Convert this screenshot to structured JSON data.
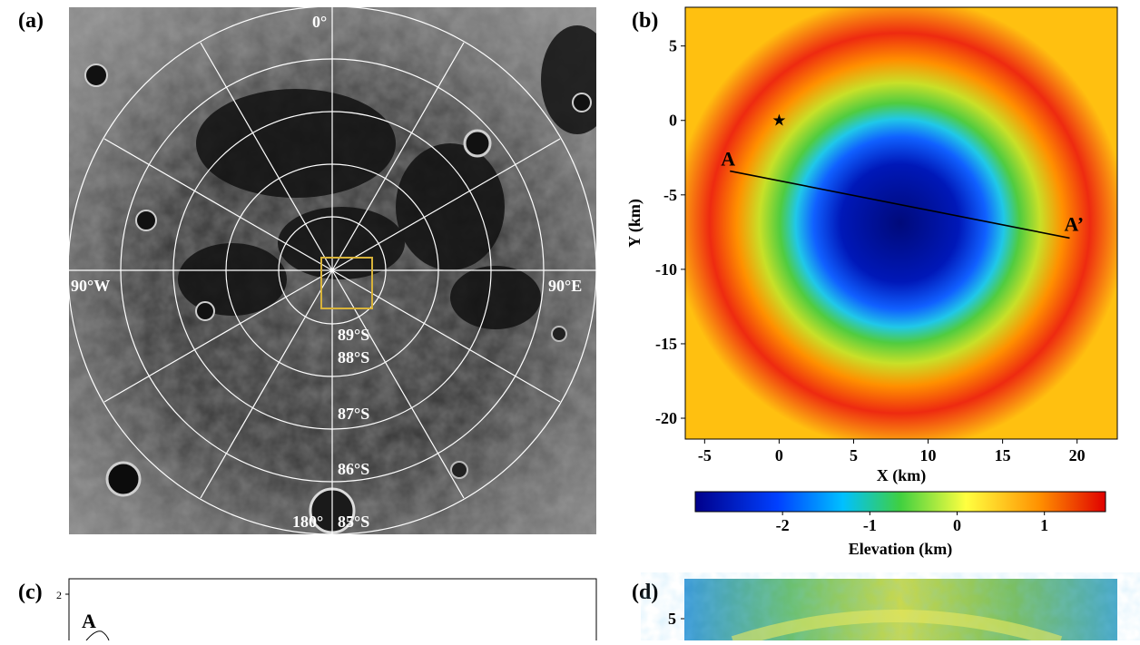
{
  "panels": {
    "a": {
      "label": "(a)",
      "lon_labels": {
        "top": "0°",
        "left": "90°W",
        "right": "90°E",
        "bottom": "180°"
      },
      "lat_labels": [
        "89°S",
        "88°S",
        "87°S",
        "86°S",
        "85°S"
      ],
      "highlight_color": "#d8b33a"
    },
    "b": {
      "label": "(b)",
      "profile_start_label": "A",
      "profile_end_label": "A’",
      "star_symbol": "★",
      "colorbar": {
        "label": "Elevation (km)",
        "ticks": [
          "-2",
          "-1",
          "0",
          "1"
        ],
        "colors": [
          "#00008b",
          "#0040ff",
          "#00c0ff",
          "#40d040",
          "#ffff40",
          "#ff9000",
          "#e00000"
        ]
      }
    },
    "c": {
      "label": "(c)",
      "y_tick": "2",
      "profile_label": "A"
    },
    "d": {
      "label": "(d)",
      "y_tick": "5"
    }
  },
  "chart_data": {
    "type": "heatmap",
    "title": "",
    "xlabel": "X (km)",
    "ylabel": "Y (km)",
    "xlim": [
      -6.3,
      22.7
    ],
    "ylim": [
      -21.4,
      7.6
    ],
    "xticks": [
      -5,
      0,
      5,
      10,
      15,
      20
    ],
    "yticks": [
      5,
      0,
      -5,
      -10,
      -15,
      -20
    ],
    "colorbar_label": "Elevation (km)",
    "colorbar_range": [
      -3.0,
      1.7
    ],
    "crater_center_km": [
      8.1,
      -6.9
    ],
    "profile": {
      "start": [
        -3.3,
        -3.4
      ],
      "end": [
        19.5,
        -7.9
      ],
      "start_label": "A",
      "end_label": "A’"
    },
    "star_marker": [
      0,
      0
    ]
  }
}
